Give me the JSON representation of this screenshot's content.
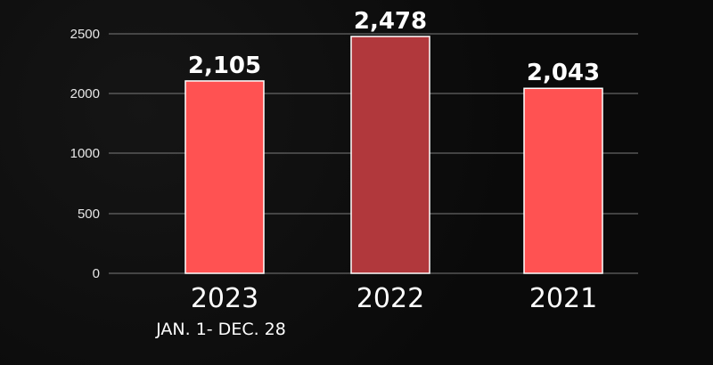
{
  "chart_data": {
    "type": "bar",
    "categories": [
      "2023",
      "2022",
      "2021"
    ],
    "values": [
      2105,
      2478,
      2043
    ],
    "value_labels": [
      "2,105",
      "2,478",
      "2,043"
    ],
    "ticks": [
      {
        "value": 0,
        "label": "0"
      },
      {
        "value": 500,
        "label": "500"
      },
      {
        "value": 1000,
        "label": "1000"
      },
      {
        "value": 2000,
        "label": "2000"
      },
      {
        "value": 2500,
        "label": "2500"
      }
    ],
    "category_note": "JAN. 1- DEC. 28",
    "bar_colors": [
      "#ff5252",
      "#b1383c",
      "#ff5252"
    ],
    "gridlines": true,
    "background_color": "#0b0b0b",
    "gridline_color": "#7a7a7a"
  }
}
